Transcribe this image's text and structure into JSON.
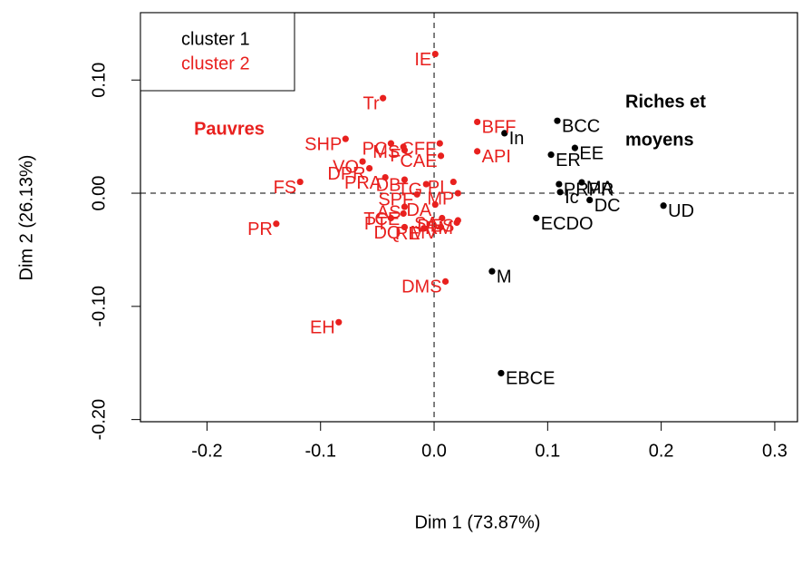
{
  "chart_data": {
    "type": "scatter",
    "xlabel": "Dim 1 (73.87%)",
    "ylabel": "Dim 2 (26.13%)",
    "xlim": [
      -0.2586,
      0.32
    ],
    "ylim": [
      -0.2019,
      0.1595
    ],
    "xticks": [
      -0.2,
      -0.1,
      {
        "value": 0,
        "label": "0.0"
      },
      0.1,
      0.2,
      0.3
    ],
    "yticks": [
      {
        "value": -0.2,
        "label": "-0.20"
      },
      {
        "value": -0.1,
        "label": "-0.10"
      },
      {
        "value": 0,
        "label": "0.00"
      },
      {
        "value": 0.1,
        "label": "0.10"
      }
    ],
    "reference_lines": {
      "x": 0,
      "y": 0
    },
    "legend": "top-left",
    "annotations": [
      {
        "lines": [
          "Pauvres"
        ],
        "color": "#e8201e"
      },
      {
        "lines": [
          "Riches et",
          "moyens"
        ],
        "color": "#000000"
      }
    ],
    "series": [
      {
        "name": "cluster 1",
        "color": "#000000",
        "labels": [
          "BCC",
          "EE",
          "ER",
          "In",
          "MA",
          "PRPR",
          "Ic",
          "DC",
          "UD",
          "ECDO",
          "M",
          "EBCE"
        ],
        "x": [
          0.1085,
          0.124,
          0.103,
          0.062,
          0.13,
          0.11,
          0.111,
          0.137,
          0.202,
          0.09,
          0.051,
          0.059
        ],
        "values": [
          0.064,
          0.04,
          0.034,
          0.053,
          0.0096,
          0.008,
          0.001,
          -0.006,
          -0.011,
          -0.022,
          -0.069,
          -0.159
        ]
      },
      {
        "name": "cluster 2",
        "color": "#e8201e",
        "labels": [
          "IE",
          "Tr",
          "BFF",
          "SHP",
          "PC",
          "MS",
          "CFF",
          "VO",
          "DPR",
          "F",
          "CAE",
          "API",
          "FS",
          "PRA",
          "DB",
          "TG",
          "PL",
          "PR",
          "SPF",
          "MP",
          "AS",
          "DA",
          "TCE",
          "PT",
          "DES",
          "DQ",
          "RE",
          "MV",
          "SA",
          "RM",
          "DMS",
          "EH"
        ],
        "x": [
          0.001,
          -0.045,
          0.038,
          -0.078,
          -0.038,
          -0.027,
          0.005,
          -0.063,
          -0.057,
          -0.026,
          0.006,
          0.038,
          -0.118,
          -0.043,
          -0.026,
          -0.007,
          0.017,
          -0.139,
          -0.015,
          0.021,
          -0.026,
          0.001,
          -0.027,
          -0.038,
          0.021,
          -0.026,
          -0.009,
          0.006,
          0.007,
          0.02,
          0.01,
          -0.084
        ],
        "values": [
          0.123,
          0.084,
          0.063,
          0.048,
          0.044,
          0.041,
          0.044,
          0.028,
          0.022,
          0.038,
          0.033,
          0.037,
          0.01,
          0.014,
          0.012,
          0.008,
          0.01,
          -0.027,
          -0.001,
          0.0,
          -0.012,
          -0.01,
          -0.018,
          -0.022,
          -0.024,
          -0.03,
          -0.031,
          -0.03,
          -0.022,
          -0.026,
          -0.078,
          -0.114
        ]
      }
    ]
  }
}
